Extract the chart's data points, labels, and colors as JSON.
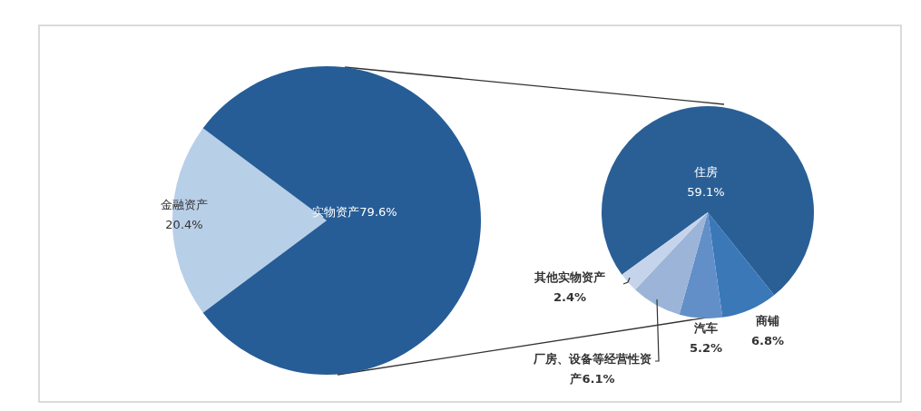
{
  "chart_data": [
    {
      "type": "pie",
      "categories": [
        "金融资产",
        "实物资产"
      ],
      "values": [
        20.4,
        79.6
      ],
      "colors": [
        "#b8cfe8",
        "#265d97"
      ],
      "value_labels": [
        "20.4%",
        "79.6%"
      ]
    },
    {
      "type": "pie",
      "categories": [
        "住房",
        "商铺",
        "汽车",
        "厂房、设备等经营性资产",
        "其他实物资产"
      ],
      "values": [
        59.1,
        6.8,
        5.2,
        6.1,
        2.4
      ],
      "colors": [
        "#2a5f96",
        "#3a78b8",
        "#628fc8",
        "#9bb4d8",
        "#c5d4ea"
      ],
      "value_labels": [
        "59.1%",
        "6.8%",
        "5.2%",
        "6.1%",
        "2.4%"
      ]
    }
  ]
}
